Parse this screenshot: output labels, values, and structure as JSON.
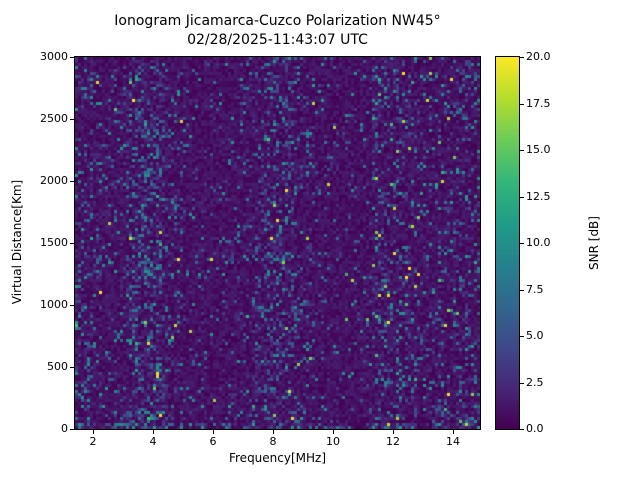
{
  "chart_data": {
    "type": "heatmap",
    "title": "Ionogram Jicamarca-Cuzco Polarization NW45°",
    "subtitle": "02/28/2025-11:43:07 UTC",
    "xlabel": "Frequency[MHz]",
    "ylabel": "Virtual Distance[Km]",
    "xlim": [
      1.4,
      14.9
    ],
    "ylim": [
      0,
      3000
    ],
    "x_ticks": [
      2,
      4,
      6,
      8,
      10,
      12,
      14
    ],
    "y_ticks": [
      0,
      500,
      1000,
      1500,
      2000,
      2500,
      3000
    ],
    "colormap": "viridis",
    "grid": false,
    "colorbar": {
      "label": "SNR [dB]",
      "min": 0,
      "max": 20,
      "ticks": [
        "0.0",
        "2.5",
        "5.0",
        "7.5",
        "10.0",
        "12.5",
        "15.0",
        "17.5",
        "20.0"
      ]
    },
    "pattern": {
      "description": "Sparse random SNR speckle noise (mostly 2-10 dB teal/blue dashes, occasional 11-20 dB green/yellow points) over a near-zero dark-purple background. Denser vertical noise bands near 2 MHz, 3.2-4.4 MHz and 8-9 MHz; quieter bands near 5-6, 6.5-7 and 10.3-11.2 MHz; brighter and denser speckle with yellow points above 11 MHz; dense speckle along the bottom edge and in the lower-right corner; a faint denser patch near 1400-1550 km between 5.5 and 8.5 MHz.",
      "seed": 20250228,
      "background_snr_max": 1.8,
      "speckle_base_density": 0.2,
      "speckle_snr_range": [
        2,
        20
      ]
    }
  }
}
